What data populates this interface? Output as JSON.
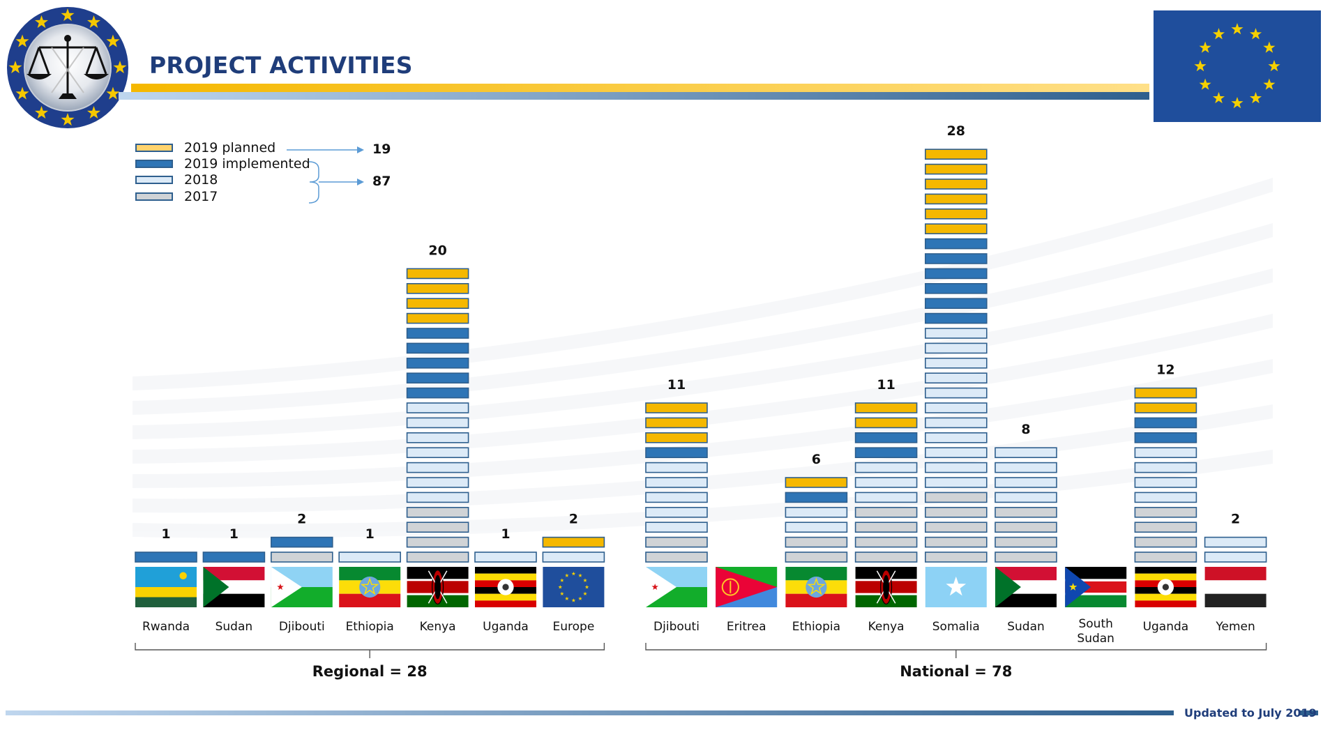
{
  "header": {
    "title": "PROJECT ACTIVITIES",
    "logo_icon": "scales-of-justice-icon",
    "flag_icon": "eu-flag-icon"
  },
  "footer": {
    "note": "Updated to July 2019"
  },
  "colors": {
    "planned_2019": "#F5B800",
    "implemented_2019": "#2E75B6",
    "y2018": "#DCEAF7",
    "y2017": "#D0D3D6",
    "border": "#2E5F8E",
    "title": "#1F3D7A"
  },
  "legend": {
    "items": [
      {
        "label": "2019 planned",
        "key": "planned"
      },
      {
        "label": "2019 implemented",
        "key": "implemented"
      },
      {
        "label": "2018",
        "key": "y2018"
      },
      {
        "label": "2017",
        "key": "y2017"
      }
    ],
    "planned_total": "19",
    "implemented_total": "87"
  },
  "chart_data": {
    "type": "bar",
    "stacked": true,
    "series": [
      {
        "name": "2017",
        "key": "y2017"
      },
      {
        "name": "2018",
        "key": "y2018"
      },
      {
        "name": "2019 implemented",
        "key": "implemented"
      },
      {
        "name": "2019 planned",
        "key": "planned"
      }
    ],
    "groups": [
      {
        "label": "Regional = 28",
        "categories": [
          {
            "name": "Rwanda",
            "flag": "rwanda-flag-icon",
            "total": 1,
            "y2017": 0,
            "y2018": 0,
            "implemented": 1,
            "planned": 0
          },
          {
            "name": "Sudan",
            "flag": "sudan-flag-icon",
            "total": 1,
            "y2017": 0,
            "y2018": 0,
            "implemented": 1,
            "planned": 0
          },
          {
            "name": "Djibouti",
            "flag": "djibouti-flag-icon",
            "total": 2,
            "y2017": 1,
            "y2018": 0,
            "implemented": 1,
            "planned": 0
          },
          {
            "name": "Ethiopia",
            "flag": "ethiopia-flag-icon",
            "total": 1,
            "y2017": 0,
            "y2018": 1,
            "implemented": 0,
            "planned": 0
          },
          {
            "name": "Kenya",
            "flag": "kenya-flag-icon",
            "total": 20,
            "y2017": 4,
            "y2018": 7,
            "implemented": 5,
            "planned": 4
          },
          {
            "name": "Uganda",
            "flag": "uganda-flag-icon",
            "total": 1,
            "y2017": 0,
            "y2018": 1,
            "implemented": 0,
            "planned": 0
          },
          {
            "name": "Europe",
            "flag": "eu-flag-icon",
            "total": 2,
            "y2017": 0,
            "y2018": 1,
            "implemented": 0,
            "planned": 1
          }
        ]
      },
      {
        "label": "National = 78",
        "categories": [
          {
            "name": "Djibouti",
            "flag": "djibouti-flag-icon",
            "total": 11,
            "y2017": 2,
            "y2018": 5,
            "implemented": 1,
            "planned": 3
          },
          {
            "name": "Eritrea",
            "flag": "eritrea-flag-icon",
            "total": 0,
            "y2017": 0,
            "y2018": 0,
            "implemented": 0,
            "planned": 0
          },
          {
            "name": "Ethiopia",
            "flag": "ethiopia-flag-icon",
            "total": 6,
            "y2017": 2,
            "y2018": 2,
            "implemented": 1,
            "planned": 1
          },
          {
            "name": "Kenya",
            "flag": "kenya-flag-icon",
            "total": 11,
            "y2017": 4,
            "y2018": 3,
            "implemented": 2,
            "planned": 2
          },
          {
            "name": "Somalia",
            "flag": "somalia-flag-icon",
            "total": 28,
            "y2017": 5,
            "y2018": 11,
            "implemented": 6,
            "planned": 6
          },
          {
            "name": "Sudan",
            "flag": "sudan-flag-icon",
            "total": 8,
            "y2017": 4,
            "y2018": 4,
            "implemented": 0,
            "planned": 0
          },
          {
            "name": "South Sudan",
            "flag": "south-sudan-flag-icon",
            "total": 0,
            "y2017": 0,
            "y2018": 0,
            "implemented": 0,
            "planned": 0
          },
          {
            "name": "Uganda",
            "flag": "uganda-flag-icon",
            "total": 12,
            "y2017": 4,
            "y2018": 4,
            "implemented": 2,
            "planned": 2
          },
          {
            "name": "Yemen",
            "flag": "yemen-flag-icon",
            "total": 2,
            "y2017": 0,
            "y2018": 2,
            "implemented": 0,
            "planned": 0
          }
        ]
      }
    ]
  }
}
